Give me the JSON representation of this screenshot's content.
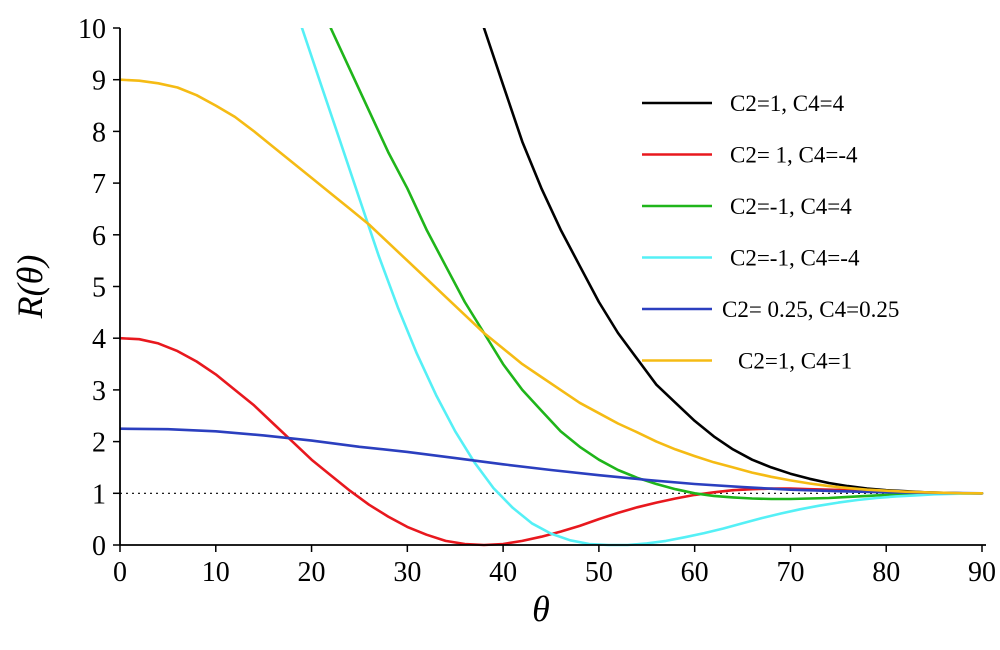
{
  "chart_data": {
    "type": "line",
    "title": "",
    "xlabel": "θ",
    "ylabel": "R(θ)",
    "xlim": [
      0,
      90
    ],
    "ylim": [
      0,
      10
    ],
    "x_ticks": [
      0,
      10,
      20,
      30,
      40,
      50,
      60,
      70,
      80,
      90
    ],
    "y_ticks": [
      0,
      1,
      2,
      3,
      4,
      5,
      6,
      7,
      8,
      9,
      10
    ],
    "grid": false,
    "legend_position": "top-right",
    "reference_line": {
      "y": 1,
      "style": "dotted"
    },
    "series": [
      {
        "name": "C2=1, C4=4",
        "color": "#000000",
        "x": [
          38,
          40,
          42,
          44,
          46,
          48,
          50,
          52,
          54,
          56,
          58,
          60,
          62,
          64,
          66,
          68,
          70,
          72,
          74,
          76,
          78,
          80,
          82,
          84,
          86,
          88,
          90
        ],
        "y": [
          10.0,
          8.9,
          7.8,
          6.9,
          6.1,
          5.4,
          4.7,
          4.1,
          3.6,
          3.1,
          2.75,
          2.4,
          2.1,
          1.85,
          1.65,
          1.5,
          1.38,
          1.28,
          1.2,
          1.14,
          1.09,
          1.06,
          1.04,
          1.02,
          1.01,
          1.0,
          1.0
        ]
      },
      {
        "name": "C2= 1, C4=-4",
        "color": "#e8181e",
        "x": [
          0,
          2,
          4,
          6,
          8,
          10,
          12,
          14,
          16,
          18,
          20,
          22,
          24,
          26,
          28,
          30,
          32,
          34,
          36,
          38,
          40,
          42,
          44,
          46,
          48,
          50,
          52,
          54,
          56,
          58,
          60,
          62,
          64,
          66,
          68,
          70,
          72,
          74,
          76,
          78,
          80,
          82,
          84,
          86,
          88,
          90
        ],
        "y": [
          4.0,
          3.98,
          3.9,
          3.75,
          3.55,
          3.3,
          3.0,
          2.7,
          2.35,
          2.0,
          1.65,
          1.35,
          1.05,
          0.78,
          0.55,
          0.35,
          0.2,
          0.08,
          0.02,
          0.0,
          0.02,
          0.08,
          0.16,
          0.26,
          0.37,
          0.5,
          0.62,
          0.73,
          0.82,
          0.9,
          0.97,
          1.02,
          1.06,
          1.08,
          1.09,
          1.09,
          1.08,
          1.07,
          1.06,
          1.04,
          1.03,
          1.02,
          1.01,
          1.0,
          1.0,
          1.0
        ]
      },
      {
        "name": "C2=-1, C4=4",
        "color": "#1fb51a",
        "x": [
          22,
          24,
          26,
          28,
          30,
          32,
          34,
          36,
          38,
          40,
          42,
          44,
          46,
          48,
          50,
          52,
          54,
          56,
          58,
          60,
          62,
          64,
          66,
          68,
          70,
          72,
          74,
          76,
          78,
          80,
          82,
          84,
          86,
          88,
          90
        ],
        "y": [
          10.0,
          9.2,
          8.4,
          7.6,
          6.9,
          6.1,
          5.4,
          4.7,
          4.1,
          3.5,
          3.0,
          2.6,
          2.2,
          1.9,
          1.65,
          1.45,
          1.3,
          1.18,
          1.08,
          1.0,
          0.95,
          0.92,
          0.9,
          0.89,
          0.89,
          0.9,
          0.91,
          0.93,
          0.95,
          0.97,
          0.98,
          0.99,
          1.0,
          1.0,
          1.0
        ]
      },
      {
        "name": "C2=-1, C4=-4",
        "color": "#55f0f6",
        "x": [
          19,
          21,
          23,
          25,
          27,
          29,
          31,
          33,
          35,
          37,
          39,
          41,
          43,
          45,
          47,
          49,
          51,
          53,
          55,
          57,
          59,
          61,
          63,
          65,
          67,
          69,
          71,
          73,
          75,
          77,
          79,
          81,
          83,
          85,
          87,
          90
        ],
        "y": [
          10.0,
          8.9,
          7.8,
          6.7,
          5.6,
          4.6,
          3.7,
          2.9,
          2.2,
          1.6,
          1.1,
          0.72,
          0.42,
          0.22,
          0.09,
          0.02,
          0.0,
          0.0,
          0.03,
          0.08,
          0.15,
          0.23,
          0.32,
          0.42,
          0.52,
          0.61,
          0.69,
          0.76,
          0.82,
          0.87,
          0.91,
          0.94,
          0.96,
          0.98,
          0.99,
          1.0
        ]
      },
      {
        "name": "C2= 0.25, C4=0.25",
        "color": "#2b3fbf",
        "x": [
          0,
          5,
          10,
          15,
          20,
          25,
          30,
          35,
          40,
          45,
          50,
          55,
          60,
          65,
          70,
          75,
          80,
          85,
          90
        ],
        "y": [
          2.25,
          2.24,
          2.2,
          2.12,
          2.02,
          1.9,
          1.8,
          1.68,
          1.56,
          1.45,
          1.35,
          1.26,
          1.18,
          1.12,
          1.07,
          1.04,
          1.02,
          1.01,
          1.0
        ]
      },
      {
        "name": "C2=1, C4=1",
        "color": "#f5bb14",
        "x": [
          0,
          2,
          4,
          6,
          8,
          10,
          12,
          14,
          16,
          18,
          20,
          22,
          24,
          26,
          28,
          30,
          32,
          34,
          36,
          38,
          40,
          42,
          44,
          46,
          48,
          50,
          52,
          54,
          56,
          58,
          60,
          62,
          64,
          66,
          68,
          70,
          72,
          74,
          76,
          78,
          80,
          82,
          84,
          86,
          88,
          90
        ],
        "y": [
          9.0,
          8.98,
          8.93,
          8.85,
          8.7,
          8.5,
          8.28,
          8.0,
          7.7,
          7.4,
          7.1,
          6.8,
          6.5,
          6.2,
          5.85,
          5.5,
          5.15,
          4.8,
          4.45,
          4.1,
          3.8,
          3.5,
          3.25,
          3.0,
          2.75,
          2.55,
          2.35,
          2.18,
          2.0,
          1.85,
          1.72,
          1.6,
          1.5,
          1.4,
          1.32,
          1.25,
          1.19,
          1.14,
          1.1,
          1.07,
          1.05,
          1.03,
          1.02,
          1.01,
          1.0,
          1.0
        ]
      }
    ]
  }
}
